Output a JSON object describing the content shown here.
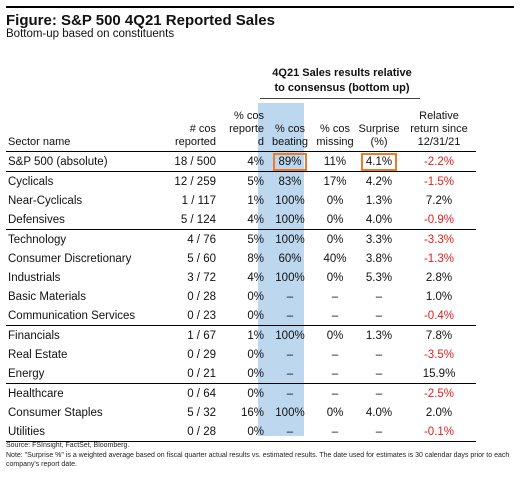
{
  "title": "Figure: S&P 500 4Q21 Reported Sales",
  "subtitle": "Bottom-up based on constituents",
  "group_header_line1": "4Q21 Sales results relative",
  "group_header_line2": "to consensus (bottom up)",
  "columns": {
    "sector": "Sector name",
    "reported_l1": "# cos",
    "reported_l2": "reported",
    "pct_l1": "% cos",
    "pct_l2": "reporte",
    "pct_l3": "d",
    "beating_l1": "% cos",
    "beating_l2": "beating",
    "missing_l1": "% cos",
    "missing_l2": "missing",
    "surprise_l1": "Surprise",
    "surprise_l2": "(%)",
    "relret_l1": "Relative",
    "relret_l2": "return since",
    "relret_l3": "12/31/21"
  },
  "rows": [
    {
      "sector": "S&P 500 (absolute)",
      "reported": "18 / 500",
      "pct_reported": "4%",
      "pct_beating": "89%",
      "pct_missing": "11%",
      "surprise": "4.1%",
      "rel_return": "-2.2%"
    },
    {
      "sector": "Cyclicals",
      "reported": "12 / 259",
      "pct_reported": "5%",
      "pct_beating": "83%",
      "pct_missing": "17%",
      "surprise": "4.2%",
      "rel_return": "-1.5%"
    },
    {
      "sector": "Near-Cyclicals",
      "reported": "1 / 117",
      "pct_reported": "1%",
      "pct_beating": "100%",
      "pct_missing": "0%",
      "surprise": "1.3%",
      "rel_return": "7.2%"
    },
    {
      "sector": "Defensives",
      "reported": "5 / 124",
      "pct_reported": "4%",
      "pct_beating": "100%",
      "pct_missing": "0%",
      "surprise": "4.0%",
      "rel_return": "-0.9%"
    },
    {
      "sector": "Technology",
      "reported": "4 / 76",
      "pct_reported": "5%",
      "pct_beating": "100%",
      "pct_missing": "0%",
      "surprise": "3.3%",
      "rel_return": "-3.3%"
    },
    {
      "sector": "Consumer Discretionary",
      "reported": "5 / 60",
      "pct_reported": "8%",
      "pct_beating": "60%",
      "pct_missing": "40%",
      "surprise": "3.8%",
      "rel_return": "-1.3%"
    },
    {
      "sector": "Industrials",
      "reported": "3 / 72",
      "pct_reported": "4%",
      "pct_beating": "100%",
      "pct_missing": "0%",
      "surprise": "5.3%",
      "rel_return": "2.8%"
    },
    {
      "sector": "Basic Materials",
      "reported": "0 / 28",
      "pct_reported": "0%",
      "pct_beating": "–",
      "pct_missing": "–",
      "surprise": "–",
      "rel_return": "1.0%"
    },
    {
      "sector": "Communication Services",
      "reported": "0 / 23",
      "pct_reported": "0%",
      "pct_beating": "–",
      "pct_missing": "–",
      "surprise": "–",
      "rel_return": "-0.4%"
    },
    {
      "sector": "Financials",
      "reported": "1 / 67",
      "pct_reported": "1%",
      "pct_beating": "100%",
      "pct_missing": "0%",
      "surprise": "1.3%",
      "rel_return": "7.8%"
    },
    {
      "sector": "Real Estate",
      "reported": "0 / 29",
      "pct_reported": "0%",
      "pct_beating": "–",
      "pct_missing": "–",
      "surprise": "–",
      "rel_return": "-3.5%"
    },
    {
      "sector": "Energy",
      "reported": "0 / 21",
      "pct_reported": "0%",
      "pct_beating": "–",
      "pct_missing": "–",
      "surprise": "–",
      "rel_return": "15.9%"
    },
    {
      "sector": "Healthcare",
      "reported": "0 / 64",
      "pct_reported": "0%",
      "pct_beating": "–",
      "pct_missing": "–",
      "surprise": "–",
      "rel_return": "-2.5%"
    },
    {
      "sector": "Consumer Staples",
      "reported": "5 / 32",
      "pct_reported": "16%",
      "pct_beating": "100%",
      "pct_missing": "0%",
      "surprise": "4.0%",
      "rel_return": "2.0%"
    },
    {
      "sector": "Utilities",
      "reported": "0 / 28",
      "pct_reported": "0%",
      "pct_beating": "–",
      "pct_missing": "–",
      "surprise": "–",
      "rel_return": "-0.1%"
    }
  ],
  "source": "Source: FSInsight, FactSet, Bloomberg.",
  "note": "Note: \"Surprise %\" is a weighted average based on fiscal quarter actual results vs. estimated results.  The date used for estimates is 30 calendar days prior to each company's report date.",
  "colors": {
    "highlight_column": "#bcd7ee",
    "highlight_box": "#ef7a2a",
    "negative": "#e02020"
  }
}
